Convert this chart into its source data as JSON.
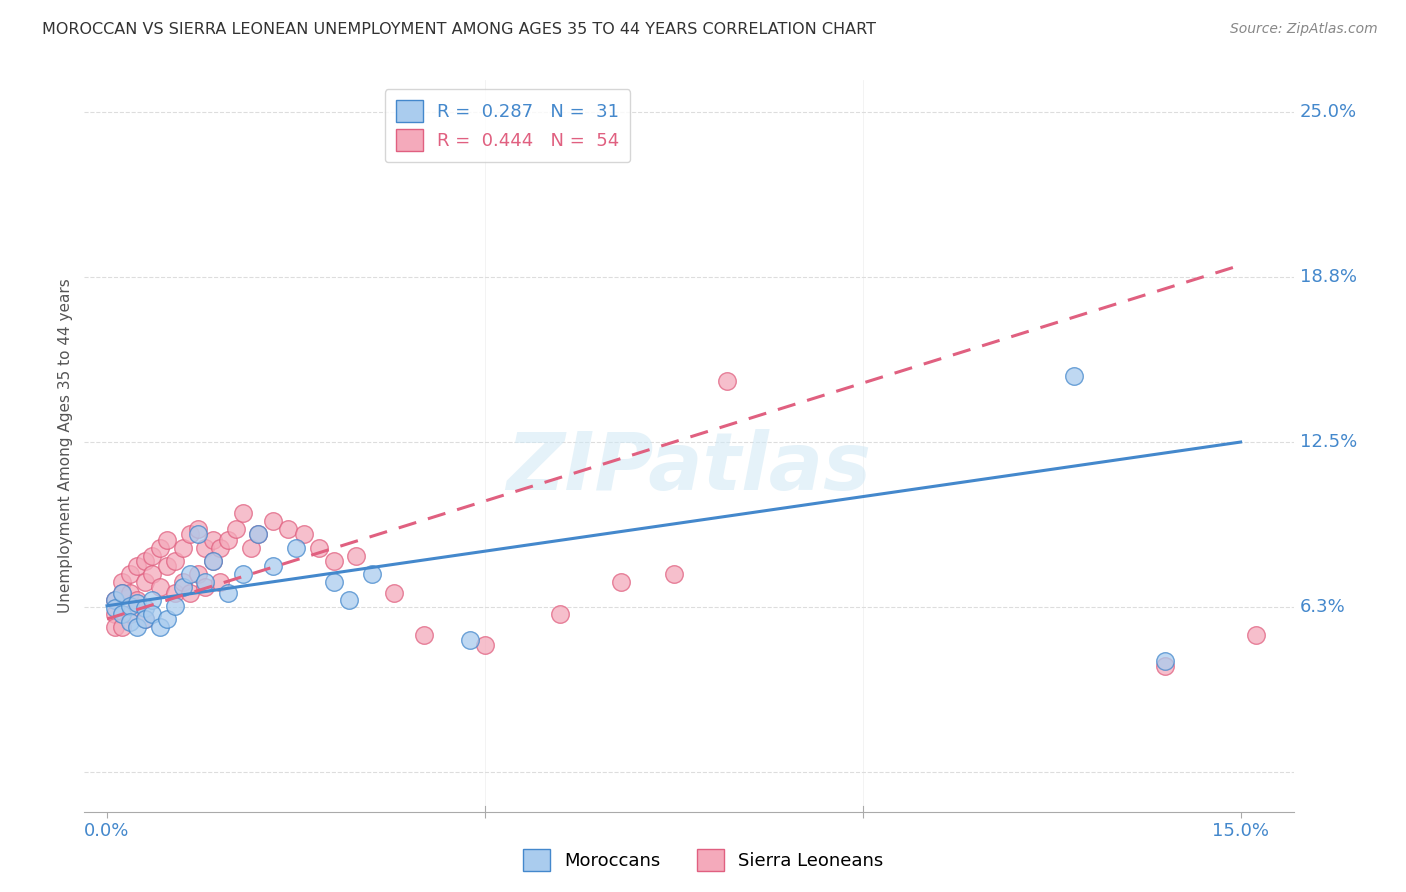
{
  "title": "MOROCCAN VS SIERRA LEONEAN UNEMPLOYMENT AMONG AGES 35 TO 44 YEARS CORRELATION CHART",
  "source": "Source: ZipAtlas.com",
  "xlim": [
    -0.003,
    0.157
  ],
  "ylim": [
    -0.015,
    0.262
  ],
  "moroccan_R": 0.287,
  "moroccan_N": 31,
  "sierraleone_R": 0.444,
  "sierraleone_N": 54,
  "moroccan_color": "#aaccee",
  "sierraleone_color": "#f4aabb",
  "moroccan_line_color": "#4488cc",
  "sierraleone_line_color": "#e06080",
  "axis_label_color": "#4488cc",
  "watermark_color": "#c8dff0",
  "moroccan_x": [
    0.001,
    0.001,
    0.002,
    0.002,
    0.003,
    0.003,
    0.004,
    0.004,
    0.005,
    0.005,
    0.006,
    0.006,
    0.007,
    0.008,
    0.009,
    0.01,
    0.011,
    0.012,
    0.013,
    0.014,
    0.016,
    0.018,
    0.02,
    0.022,
    0.025,
    0.03,
    0.032,
    0.035,
    0.048,
    0.128,
    0.14
  ],
  "moroccan_y": [
    0.065,
    0.062,
    0.068,
    0.06,
    0.063,
    0.057,
    0.064,
    0.055,
    0.062,
    0.058,
    0.065,
    0.06,
    0.055,
    0.058,
    0.063,
    0.07,
    0.075,
    0.09,
    0.072,
    0.08,
    0.068,
    0.075,
    0.09,
    0.078,
    0.085,
    0.072,
    0.065,
    0.075,
    0.05,
    0.15,
    0.042
  ],
  "sierraleone_x": [
    0.001,
    0.001,
    0.001,
    0.002,
    0.002,
    0.002,
    0.003,
    0.003,
    0.003,
    0.004,
    0.004,
    0.005,
    0.005,
    0.005,
    0.006,
    0.006,
    0.007,
    0.007,
    0.008,
    0.008,
    0.009,
    0.009,
    0.01,
    0.01,
    0.011,
    0.011,
    0.012,
    0.012,
    0.013,
    0.013,
    0.014,
    0.014,
    0.015,
    0.015,
    0.016,
    0.017,
    0.018,
    0.019,
    0.02,
    0.022,
    0.024,
    0.026,
    0.028,
    0.03,
    0.033,
    0.038,
    0.042,
    0.05,
    0.06,
    0.068,
    0.075,
    0.082,
    0.14,
    0.152
  ],
  "sierraleone_y": [
    0.065,
    0.06,
    0.055,
    0.072,
    0.068,
    0.055,
    0.075,
    0.068,
    0.06,
    0.078,
    0.065,
    0.08,
    0.072,
    0.058,
    0.082,
    0.075,
    0.085,
    0.07,
    0.088,
    0.078,
    0.08,
    0.068,
    0.085,
    0.072,
    0.09,
    0.068,
    0.092,
    0.075,
    0.085,
    0.07,
    0.088,
    0.08,
    0.085,
    0.072,
    0.088,
    0.092,
    0.098,
    0.085,
    0.09,
    0.095,
    0.092,
    0.09,
    0.085,
    0.08,
    0.082,
    0.068,
    0.052,
    0.048,
    0.06,
    0.072,
    0.075,
    0.148,
    0.04,
    0.052
  ],
  "moroccan_line_x": [
    0.0,
    0.15
  ],
  "moroccan_line_y": [
    0.063,
    0.125
  ],
  "sierraleone_line_x": [
    0.0,
    0.075
  ],
  "sierraleone_line_y": [
    0.058,
    0.125
  ]
}
